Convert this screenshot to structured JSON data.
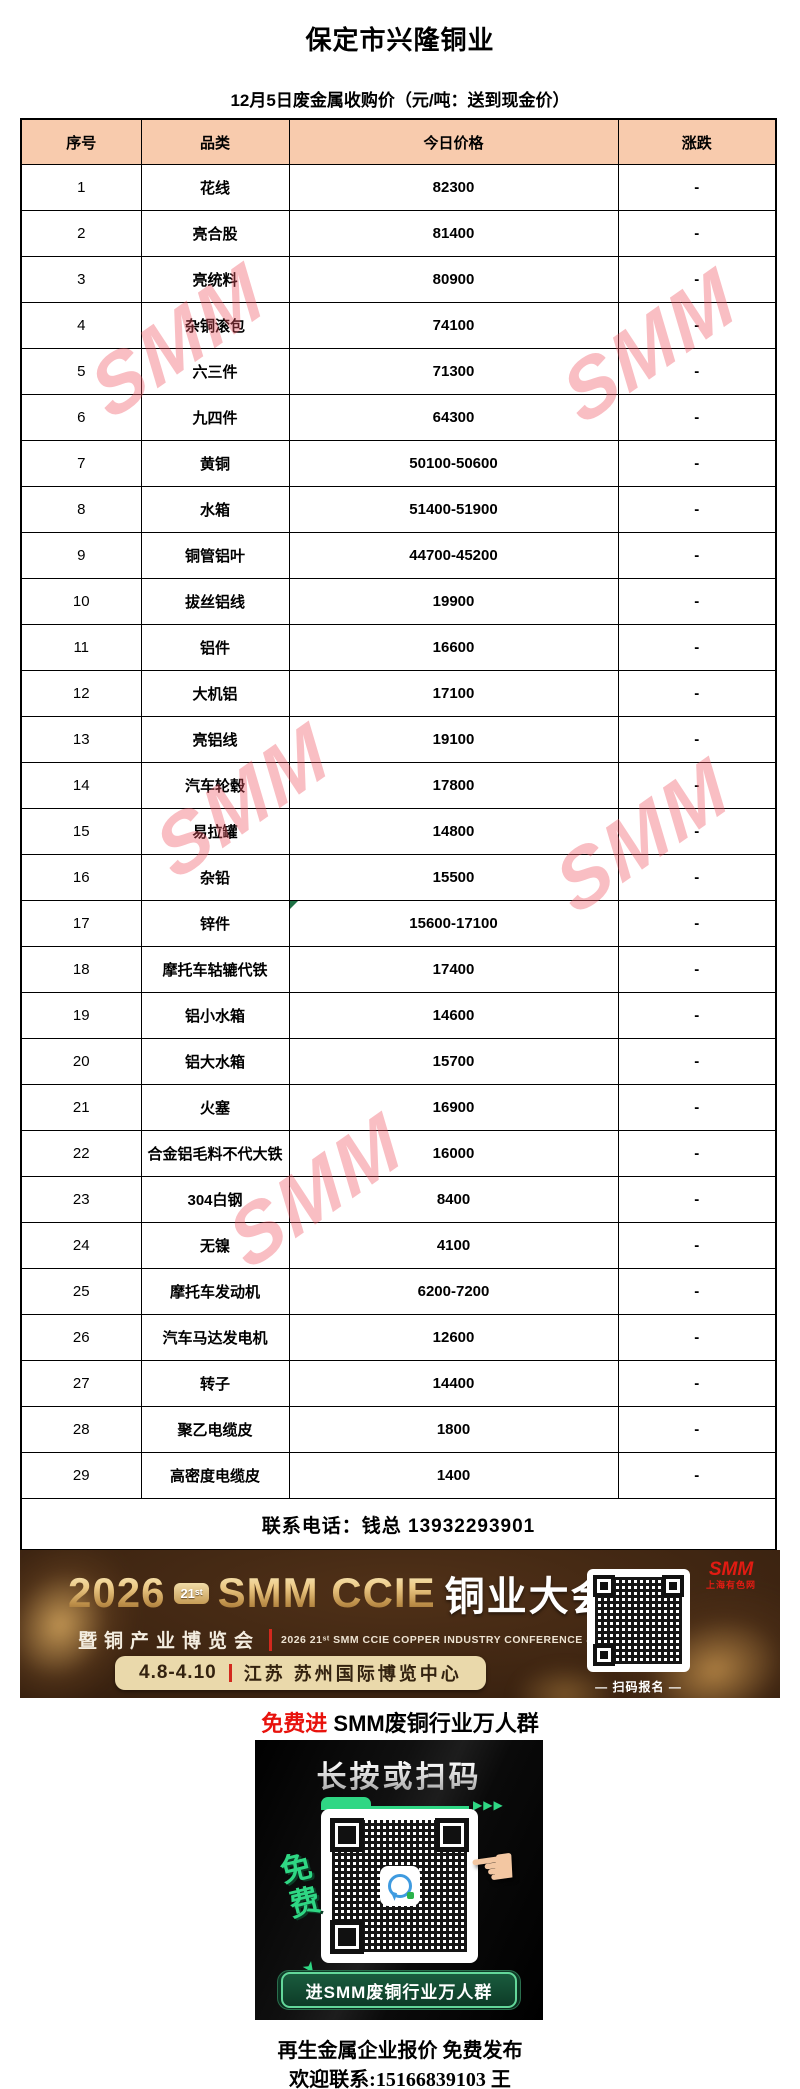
{
  "page": {
    "title": "保定市兴隆铜业",
    "subtitle": "12月5日废金属收购价（元/吨：送到现金价）",
    "watermark": "SMM"
  },
  "table": {
    "headers": [
      "序号",
      "品类",
      "今日价格",
      "涨跌"
    ],
    "rows": [
      [
        "1",
        "花线",
        "82300",
        "-"
      ],
      [
        "2",
        "亮合股",
        "81400",
        "-"
      ],
      [
        "3",
        "亮统料",
        "80900",
        "-"
      ],
      [
        "4",
        "杂铜滚包",
        "74100",
        "-"
      ],
      [
        "5",
        "六三件",
        "71300",
        "-"
      ],
      [
        "6",
        "九四件",
        "64300",
        "-"
      ],
      [
        "7",
        "黄铜",
        "50100-50600",
        "-"
      ],
      [
        "8",
        "水箱",
        "51400-51900",
        "-"
      ],
      [
        "9",
        "铜管铝叶",
        "44700-45200",
        "-"
      ],
      [
        "10",
        "拔丝铝线",
        "19900",
        "-"
      ],
      [
        "11",
        "铝件",
        "16600",
        "-"
      ],
      [
        "12",
        "大机铝",
        "17100",
        "-"
      ],
      [
        "13",
        "亮铝线",
        "19100",
        "-"
      ],
      [
        "14",
        "汽车轮毂",
        "17800",
        "-"
      ],
      [
        "15",
        "易拉罐",
        "14800",
        "-"
      ],
      [
        "16",
        "杂铅",
        "15500",
        "-"
      ],
      [
        "17",
        "锌件",
        "15600-17100",
        "-"
      ],
      [
        "18",
        "摩托车轱辘代铁",
        "17400",
        "-"
      ],
      [
        "19",
        "铝小水箱",
        "14600",
        "-"
      ],
      [
        "20",
        "铝大水箱",
        "15700",
        "-"
      ],
      [
        "21",
        "火塞",
        "16900",
        "-"
      ],
      [
        "22",
        "合金铝毛料不代大铁",
        "16000",
        "-"
      ],
      [
        "23",
        "304白钢",
        "8400",
        "-"
      ],
      [
        "24",
        "无镍",
        "4100",
        "-"
      ],
      [
        "25",
        "摩托车发动机",
        "6200-7200",
        "-"
      ],
      [
        "26",
        "汽车马达发电机",
        "12600",
        "-"
      ],
      [
        "27",
        "转子",
        "14400",
        "-"
      ],
      [
        "28",
        "聚乙电缆皮",
        "1800",
        "-"
      ],
      [
        "29",
        "高密度电缆皮",
        "1400",
        "-"
      ]
    ],
    "note_marker_row": 17,
    "header_bg": "#F8CBAD",
    "contact": "联系电话：钱总 13932293901"
  },
  "banner": {
    "year": "2026",
    "edition_badge": "21ˢᵗ",
    "title_en": "SMM CCIE",
    "title_cn": "铜业大会",
    "subtitle_cn": "暨铜产业博览会",
    "subtitle_en": "2026 21ˢᵗ SMM CCIE COPPER INDUSTRY CONFERENCE & EXPO",
    "date": "4.8-4.10",
    "venue": "江苏 苏州国际博览中心",
    "scan_hint": "— 扫码报名 —",
    "logo_text": "SMM",
    "logo_subtext": "上海有色网"
  },
  "promo": {
    "headline_red": "免费进",
    "headline_black": " SMM废铜行业万人群",
    "card_title": "长按或扫码",
    "arrows": "▶▶▶",
    "free_label": "免费",
    "free_arrow": "➤",
    "button_label": "进SMM废铜行业万人群"
  },
  "footer": {
    "line1": "再生金属企业报价  免费发布",
    "line2": "欢迎联系:15166839103  王"
  },
  "colors": {
    "header_bg": "#F8CBAD",
    "watermark": "#F0555F",
    "accent_red": "#E8120C",
    "banner_gold": "#ECC985",
    "group_green": "#2FD784"
  }
}
